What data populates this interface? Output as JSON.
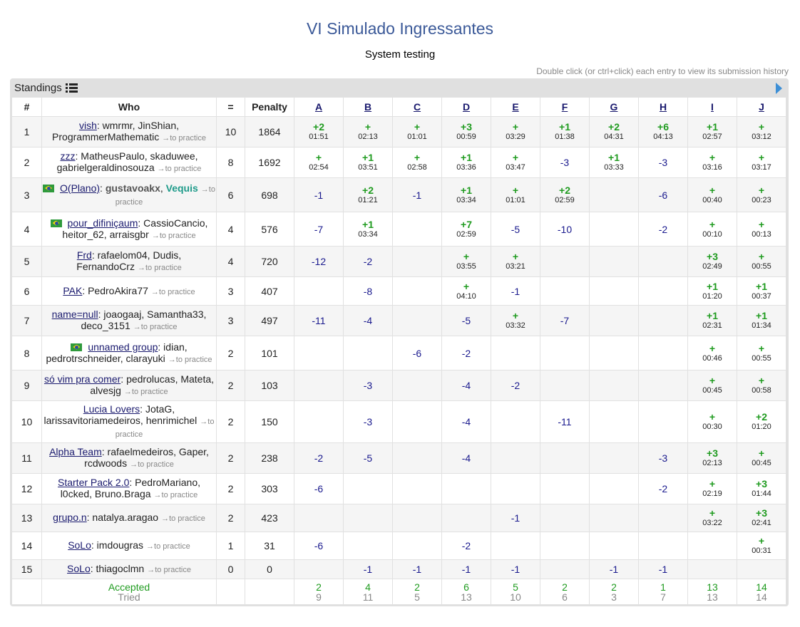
{
  "contest": {
    "title": "VI Simulado Ingressantes",
    "status": "System testing",
    "hint": "Double click (or ctrl+click) each entry to view its submission history"
  },
  "standings_label": "Standings",
  "columns": {
    "rank": "#",
    "who": "Who",
    "solved": "=",
    "penalty": "Penalty",
    "problems": [
      "A",
      "B",
      "C",
      "D",
      "E",
      "F",
      "G",
      "H",
      "I",
      "J"
    ]
  },
  "rows": [
    {
      "rank": "1",
      "flag": false,
      "who": [
        {
          "t": "vish",
          "s": "team"
        },
        {
          "t": ": wmrmr, JinShian, ProgrammerMathematic",
          "s": ""
        },
        {
          "t": "→to practice",
          "s": "practice"
        }
      ],
      "solved": "10",
      "penalty": "1864",
      "cells": [
        [
          "+2",
          "01:51"
        ],
        [
          "+",
          "02:13"
        ],
        [
          "+",
          "01:01"
        ],
        [
          "+3",
          "00:59"
        ],
        [
          "+",
          "03:29"
        ],
        [
          "+1",
          "01:38"
        ],
        [
          "+2",
          "04:31"
        ],
        [
          "+6",
          "04:13"
        ],
        [
          "+1",
          "02:57"
        ],
        [
          "+",
          "03:12"
        ]
      ]
    },
    {
      "rank": "2",
      "flag": false,
      "who": [
        {
          "t": "zzz",
          "s": "team"
        },
        {
          "t": ": MatheusPaulo, skaduwee, gabrielgeraldinosouza",
          "s": ""
        },
        {
          "t": "→to practice",
          "s": "practice"
        }
      ],
      "solved": "8",
      "penalty": "1692",
      "cells": [
        [
          "+",
          "02:54"
        ],
        [
          "+1",
          "03:51"
        ],
        [
          "+",
          "02:58"
        ],
        [
          "+1",
          "03:36"
        ],
        [
          "+",
          "03:47"
        ],
        [
          "-3",
          ""
        ],
        [
          "+1",
          "03:33"
        ],
        [
          "-3",
          ""
        ],
        [
          "+",
          "03:16"
        ],
        [
          "+",
          "03:17"
        ]
      ]
    },
    {
      "rank": "3",
      "flag": true,
      "who": [
        {
          "t": "O(Plano)",
          "s": "team"
        },
        {
          "t": ": ",
          "s": ""
        },
        {
          "t": "gustavoakx",
          "s": "member-strong"
        },
        {
          "t": ", ",
          "s": ""
        },
        {
          "t": "Vequis",
          "s": "member-green"
        },
        {
          "t": "→to practice",
          "s": "practice"
        }
      ],
      "solved": "6",
      "penalty": "698",
      "cells": [
        [
          "-1",
          ""
        ],
        [
          "+2",
          "01:21"
        ],
        [
          "-1",
          ""
        ],
        [
          "+1",
          "03:34"
        ],
        [
          "+",
          "01:01"
        ],
        [
          "+2",
          "02:59"
        ],
        [
          "",
          ""
        ],
        [
          "-6",
          ""
        ],
        [
          "+",
          "00:40"
        ],
        [
          "+",
          "00:23"
        ]
      ]
    },
    {
      "rank": "4",
      "flag": true,
      "who": [
        {
          "t": "pour_difiniçaum",
          "s": "team"
        },
        {
          "t": ": CassioCancio, heitor_62, arraisgbr",
          "s": ""
        },
        {
          "t": "→to practice",
          "s": "practice"
        }
      ],
      "solved": "4",
      "penalty": "576",
      "cells": [
        [
          "-7",
          ""
        ],
        [
          "+1",
          "03:34"
        ],
        [
          "",
          ""
        ],
        [
          "+7",
          "02:59"
        ],
        [
          "-5",
          ""
        ],
        [
          "-10",
          ""
        ],
        [
          "",
          ""
        ],
        [
          "-2",
          ""
        ],
        [
          "+",
          "00:10"
        ],
        [
          "+",
          "00:13"
        ]
      ]
    },
    {
      "rank": "5",
      "flag": false,
      "who": [
        {
          "t": "Frd",
          "s": "team"
        },
        {
          "t": ": rafaelom04, Dudis, FernandoCrz",
          "s": ""
        },
        {
          "t": "→to practice",
          "s": "practice"
        }
      ],
      "solved": "4",
      "penalty": "720",
      "cells": [
        [
          "-12",
          ""
        ],
        [
          "-2",
          ""
        ],
        [
          "",
          ""
        ],
        [
          "+",
          "03:55"
        ],
        [
          "+",
          "03:21"
        ],
        [
          "",
          ""
        ],
        [
          "",
          ""
        ],
        [
          "",
          ""
        ],
        [
          "+3",
          "02:49"
        ],
        [
          "+",
          "00:55"
        ]
      ]
    },
    {
      "rank": "6",
      "flag": false,
      "who": [
        {
          "t": "PAK",
          "s": "team"
        },
        {
          "t": ": PedroAkira77",
          "s": ""
        },
        {
          "t": "→to practice",
          "s": "practice"
        }
      ],
      "solved": "3",
      "penalty": "407",
      "cells": [
        [
          "",
          ""
        ],
        [
          "-8",
          ""
        ],
        [
          "",
          ""
        ],
        [
          "+",
          "04:10"
        ],
        [
          "-1",
          ""
        ],
        [
          "",
          ""
        ],
        [
          "",
          ""
        ],
        [
          "",
          ""
        ],
        [
          "+1",
          "01:20"
        ],
        [
          "+1",
          "00:37"
        ]
      ]
    },
    {
      "rank": "7",
      "flag": false,
      "who": [
        {
          "t": "name=null",
          "s": "team"
        },
        {
          "t": ": joaogaaj, Samantha33, deco_3151",
          "s": ""
        },
        {
          "t": "→to practice",
          "s": "practice"
        }
      ],
      "solved": "3",
      "penalty": "497",
      "cells": [
        [
          "-11",
          ""
        ],
        [
          "-4",
          ""
        ],
        [
          "",
          ""
        ],
        [
          "-5",
          ""
        ],
        [
          "+",
          "03:32"
        ],
        [
          "-7",
          ""
        ],
        [
          "",
          ""
        ],
        [
          "",
          ""
        ],
        [
          "+1",
          "02:31"
        ],
        [
          "+1",
          "01:34"
        ]
      ]
    },
    {
      "rank": "8",
      "flag": true,
      "who": [
        {
          "t": "unnamed group",
          "s": "team"
        },
        {
          "t": ": idian, pedrotrschneider, clarayuki",
          "s": ""
        },
        {
          "t": "→to practice",
          "s": "practice"
        }
      ],
      "solved": "2",
      "penalty": "101",
      "cells": [
        [
          "",
          ""
        ],
        [
          "",
          ""
        ],
        [
          "-6",
          ""
        ],
        [
          "-2",
          ""
        ],
        [
          "",
          ""
        ],
        [
          "",
          ""
        ],
        [
          "",
          ""
        ],
        [
          "",
          ""
        ],
        [
          "+",
          "00:46"
        ],
        [
          "+",
          "00:55"
        ]
      ]
    },
    {
      "rank": "9",
      "flag": false,
      "who": [
        {
          "t": "só vim pra comer",
          "s": "team"
        },
        {
          "t": ": pedrolucas, Mateta, alvesjg",
          "s": ""
        },
        {
          "t": "→to practice",
          "s": "practice"
        }
      ],
      "solved": "2",
      "penalty": "103",
      "cells": [
        [
          "",
          ""
        ],
        [
          "-3",
          ""
        ],
        [
          "",
          ""
        ],
        [
          "-4",
          ""
        ],
        [
          "-2",
          ""
        ],
        [
          "",
          ""
        ],
        [
          "",
          ""
        ],
        [
          "",
          ""
        ],
        [
          "+",
          "00:45"
        ],
        [
          "+",
          "00:58"
        ]
      ]
    },
    {
      "rank": "10",
      "flag": false,
      "who": [
        {
          "t": "Lucia Lovers",
          "s": "team"
        },
        {
          "t": ": JotaG, larissavitoriamedeiros, henrimichel",
          "s": ""
        },
        {
          "t": "→to practice",
          "s": "practice"
        }
      ],
      "solved": "2",
      "penalty": "150",
      "cells": [
        [
          "",
          ""
        ],
        [
          "-3",
          ""
        ],
        [
          "",
          ""
        ],
        [
          "-4",
          ""
        ],
        [
          "",
          ""
        ],
        [
          "-11",
          ""
        ],
        [
          "",
          ""
        ],
        [
          "",
          ""
        ],
        [
          "+",
          "00:30"
        ],
        [
          "+2",
          "01:20"
        ]
      ]
    },
    {
      "rank": "11",
      "flag": false,
      "who": [
        {
          "t": "Alpha Team",
          "s": "team"
        },
        {
          "t": ": rafaelmedeiros, Gaper, rcdwoods",
          "s": ""
        },
        {
          "t": "→to practice",
          "s": "practice"
        }
      ],
      "solved": "2",
      "penalty": "238",
      "cells": [
        [
          "-2",
          ""
        ],
        [
          "-5",
          ""
        ],
        [
          "",
          ""
        ],
        [
          "-4",
          ""
        ],
        [
          "",
          ""
        ],
        [
          "",
          ""
        ],
        [
          "",
          ""
        ],
        [
          "-3",
          ""
        ],
        [
          "+3",
          "02:13"
        ],
        [
          "+",
          "00:45"
        ]
      ]
    },
    {
      "rank": "12",
      "flag": false,
      "who": [
        {
          "t": "Starter Pack 2.0",
          "s": "team"
        },
        {
          "t": ": PedroMariano, l0cked, Bruno.Braga",
          "s": ""
        },
        {
          "t": "→to practice",
          "s": "practice"
        }
      ],
      "solved": "2",
      "penalty": "303",
      "cells": [
        [
          "-6",
          ""
        ],
        [
          "",
          ""
        ],
        [
          "",
          ""
        ],
        [
          "",
          ""
        ],
        [
          "",
          ""
        ],
        [
          "",
          ""
        ],
        [
          "",
          ""
        ],
        [
          "-2",
          ""
        ],
        [
          "+",
          "02:19"
        ],
        [
          "+3",
          "01:44"
        ]
      ]
    },
    {
      "rank": "13",
      "flag": false,
      "who": [
        {
          "t": "grupo.n",
          "s": "team"
        },
        {
          "t": ": natalya.aragao",
          "s": ""
        },
        {
          "t": "→to practice",
          "s": "practice"
        }
      ],
      "solved": "2",
      "penalty": "423",
      "cells": [
        [
          "",
          ""
        ],
        [
          "",
          ""
        ],
        [
          "",
          ""
        ],
        [
          "",
          ""
        ],
        [
          "-1",
          ""
        ],
        [
          "",
          ""
        ],
        [
          "",
          ""
        ],
        [
          "",
          ""
        ],
        [
          "+",
          "03:22"
        ],
        [
          "+3",
          "02:41"
        ]
      ]
    },
    {
      "rank": "14",
      "flag": false,
      "who": [
        {
          "t": "SoLo",
          "s": "team"
        },
        {
          "t": ": imdougras",
          "s": ""
        },
        {
          "t": "→to practice",
          "s": "practice"
        }
      ],
      "solved": "1",
      "penalty": "31",
      "cells": [
        [
          "-6",
          ""
        ],
        [
          "",
          ""
        ],
        [
          "",
          ""
        ],
        [
          "-2",
          ""
        ],
        [
          "",
          ""
        ],
        [
          "",
          ""
        ],
        [
          "",
          ""
        ],
        [
          "",
          ""
        ],
        [
          "",
          ""
        ],
        [
          "+",
          "00:31"
        ]
      ]
    },
    {
      "rank": "15",
      "flag": false,
      "who": [
        {
          "t": "SoLo",
          "s": "team"
        },
        {
          "t": ": thiagoclmn",
          "s": ""
        },
        {
          "t": "→to practice",
          "s": "practice"
        }
      ],
      "solved": "0",
      "penalty": "0",
      "cells": [
        [
          "",
          ""
        ],
        [
          "-1",
          ""
        ],
        [
          "-1",
          ""
        ],
        [
          "-1",
          ""
        ],
        [
          "-1",
          ""
        ],
        [
          "",
          ""
        ],
        [
          "-1",
          ""
        ],
        [
          "-1",
          ""
        ],
        [
          "",
          ""
        ],
        [
          "",
          ""
        ]
      ]
    }
  ],
  "footer": {
    "accepted_label": "Accepted",
    "tried_label": "Tried",
    "accepted": [
      "2",
      "4",
      "2",
      "6",
      "5",
      "2",
      "2",
      "1",
      "13",
      "14"
    ],
    "tried": [
      "9",
      "11",
      "5",
      "13",
      "10",
      "6",
      "3",
      "7",
      "13",
      "14"
    ]
  }
}
